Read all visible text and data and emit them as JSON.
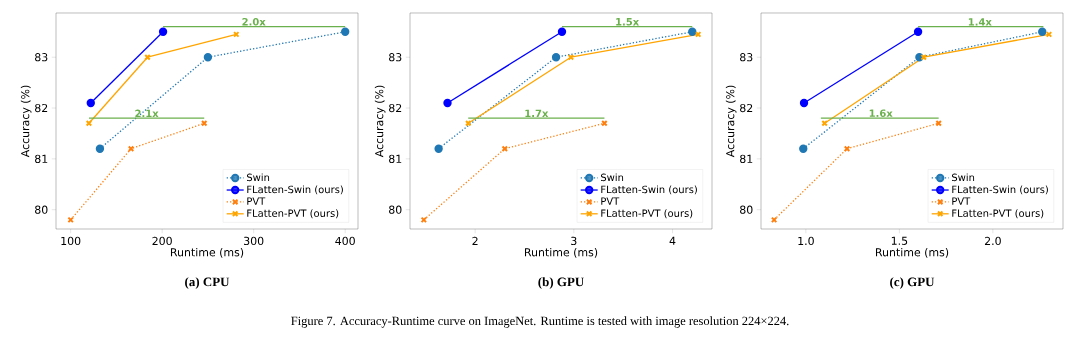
{
  "chart_data": [
    {
      "type": "line",
      "title": "(a) CPU",
      "xlabel": "Runtime (ms)",
      "ylabel": "Accuracy (%)",
      "xlim": [
        84,
        414
      ],
      "xticks": [
        100,
        200,
        300,
        400
      ],
      "ylim": [
        79.62,
        83.87
      ],
      "yticks": [
        80,
        81,
        82,
        83
      ],
      "legend": "bottom right",
      "series": [
        {
          "name": "Swin",
          "color": "#1f77b4",
          "marker": "circle",
          "line_style": "dotted",
          "x": [
            132,
            250,
            400
          ],
          "values": [
            81.2,
            83.0,
            83.5
          ]
        },
        {
          "name": "FLatten-Swin (ours)",
          "color": "#0000ff",
          "marker": "circle",
          "line_style": "solid",
          "x": [
            122,
            201
          ],
          "values": [
            82.1,
            83.5
          ]
        },
        {
          "name": "PVT",
          "color": "#ff7f0e",
          "marker": "cross",
          "line_style": "dotted",
          "x": [
            100,
            166,
            246
          ],
          "values": [
            79.8,
            81.2,
            81.7
          ]
        },
        {
          "name": "FLatten-PVT (ours)",
          "color": "#ffa500",
          "marker": "cross",
          "line_style": "solid",
          "x": [
            120,
            184,
            281
          ],
          "values": [
            81.7,
            83.0,
            83.45
          ]
        },
        {
          "color": "#6ab04c",
          "marker": "none",
          "line_style": "solid",
          "x": [
            201,
            400
          ],
          "values": [
            83.6,
            83.6
          ]
        },
        {
          "color": "#6ab04c",
          "marker": "none",
          "line_style": "solid",
          "x": [
            120,
            246
          ],
          "values": [
            81.8,
            81.8
          ]
        }
      ],
      "annotations": [
        {
          "text": "2.0x",
          "x": 300,
          "y": 83.6
        },
        {
          "text": "2.1x",
          "x": 183,
          "y": 81.8
        },
        "Figure 7. Accuracy-Runtime curve on ImageNet. Runtime is tested with image resolution 224×224."
      ]
    },
    {
      "type": "line",
      "title": "(b) GPU",
      "xlabel": "Runtime (ms)",
      "ylabel": "Accuracy (%)",
      "xlim": [
        1.34,
        4.4
      ],
      "xticks": [
        2,
        3,
        4
      ],
      "ylim": [
        79.62,
        83.87
      ],
      "yticks": [
        80,
        81,
        82,
        83
      ],
      "legend": "bottom right",
      "series": [
        {
          "name": "Swin",
          "color": "#1f77b4",
          "marker": "circle",
          "line_style": "dotted",
          "x": [
            1.63,
            2.82,
            4.2
          ],
          "values": [
            81.2,
            83.0,
            83.5
          ]
        },
        {
          "name": "FLatten-Swin (ours)",
          "color": "#0000ff",
          "marker": "circle",
          "line_style": "solid",
          "x": [
            1.72,
            2.88
          ],
          "values": [
            82.1,
            83.5
          ]
        },
        {
          "name": "PVT",
          "color": "#ff7f0e",
          "marker": "cross",
          "line_style": "dotted",
          "x": [
            1.48,
            2.3,
            3.31
          ],
          "values": [
            79.8,
            81.2,
            81.7
          ]
        },
        {
          "name": "FLatten-PVT (ours)",
          "color": "#ffa500",
          "marker": "cross",
          "line_style": "solid",
          "x": [
            1.93,
            2.97,
            4.26
          ],
          "values": [
            81.7,
            83.0,
            83.45
          ]
        },
        {
          "color": "#6ab04c",
          "marker": "none",
          "line_style": "solid",
          "x": [
            2.88,
            4.2
          ],
          "values": [
            83.6,
            83.6
          ]
        },
        {
          "color": "#6ab04c",
          "marker": "none",
          "line_style": "solid",
          "x": [
            1.93,
            3.31
          ],
          "values": [
            81.8,
            81.8
          ]
        }
      ],
      "annotations": [
        {
          "text": "1.5x",
          "x": 3.54,
          "y": 83.6
        },
        {
          "text": "1.7x",
          "x": 2.62,
          "y": 81.8
        }
      ]
    },
    {
      "type": "line",
      "title": "(c) GPU",
      "xlabel": "Runtime (ms)",
      "ylabel": "Accuracy (%)",
      "xlim": [
        0.76,
        2.375
      ],
      "xticks": [
        {
          "value": 1,
          "label": "1.0"
        },
        {
          "value": 1.5,
          "label": "1.5"
        },
        {
          "value": 2,
          "label": "2.0"
        }
      ],
      "ylim": [
        79.62,
        83.87
      ],
      "yticks": [
        80,
        81,
        82,
        83
      ],
      "legend": "bottom right",
      "series": [
        {
          "name": "Swin",
          "color": "#1f77b4",
          "marker": "circle",
          "line_style": "dotted",
          "x": [
            0.986,
            1.607,
            2.264
          ],
          "values": [
            81.2,
            83.0,
            83.5
          ]
        },
        {
          "name": "FLatten-Swin (ours)",
          "color": "#0000ff",
          "marker": "circle",
          "line_style": "solid",
          "x": [
            0.99,
            1.6
          ],
          "values": [
            82.1,
            83.5
          ]
        },
        {
          "name": "PVT",
          "color": "#ff7f0e",
          "marker": "cross",
          "line_style": "dotted",
          "x": [
            0.83,
            1.22,
            1.71
          ],
          "values": [
            79.8,
            81.2,
            81.7
          ]
        },
        {
          "name": "FLatten-PVT (ours)",
          "color": "#ffa500",
          "marker": "cross",
          "line_style": "solid",
          "x": [
            1.1,
            1.63,
            2.3
          ],
          "values": [
            81.7,
            83.0,
            83.45
          ]
        },
        {
          "color": "#6ab04c",
          "marker": "none",
          "line_style": "solid",
          "x": [
            1.6,
            2.27
          ],
          "values": [
            83.6,
            83.6
          ]
        },
        {
          "color": "#6ab04c",
          "marker": "none",
          "line_style": "solid",
          "x": [
            1.08,
            1.71
          ],
          "values": [
            81.8,
            81.8
          ]
        }
      ],
      "annotations": [
        {
          "text": "1.4x",
          "x": 1.93,
          "y": 83.6
        },
        {
          "text": "1.6x",
          "x": 1.4,
          "y": 81.8
        }
      ]
    }
  ]
}
